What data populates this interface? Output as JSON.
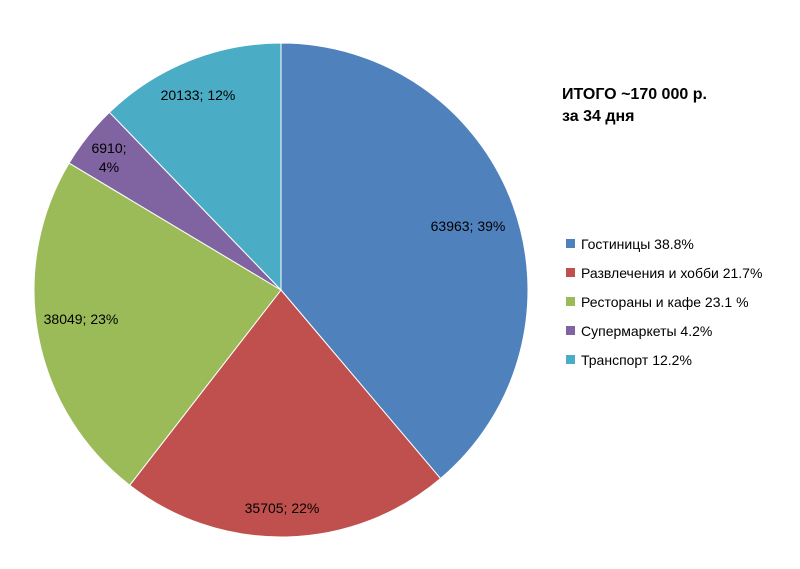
{
  "chart_data": {
    "type": "pie",
    "title_lines": [
      "ИТОГО ~170 000 р.",
      "за 34 дня"
    ],
    "slices": [
      {
        "legend": "Гостиницы 38.8%",
        "value": 63963,
        "data_label": "63963; 39%",
        "color": "#4F81BD"
      },
      {
        "legend": "Развлечения и хобби 21.7%",
        "value": 35705,
        "data_label": "35705; 22%",
        "color": "#C0504D"
      },
      {
        "legend": "Рестораны и кафе 23.1 %",
        "value": 38049,
        "data_label": "38049; 23%",
        "color": "#9BBB59"
      },
      {
        "legend": "Супермаркеты 4.2%",
        "value": 6910,
        "data_label": "6910;|4%",
        "color": "#8064A2"
      },
      {
        "legend": "Транспорт 12.2%",
        "value": 20133,
        "data_label": "20133; 12%",
        "color": "#4BACC6"
      }
    ],
    "legend_position": "right"
  }
}
